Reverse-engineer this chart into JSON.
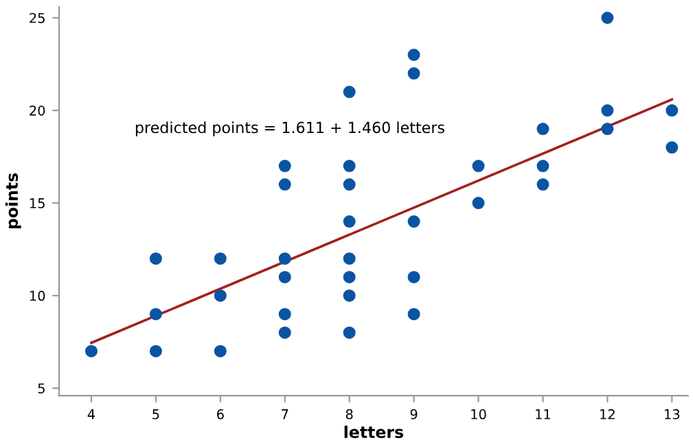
{
  "chart_data": {
    "type": "scatter",
    "xlabel": "letters",
    "ylabel": "points",
    "annotations": [
      "predicted points = 1.611 + 1.460 letters"
    ],
    "xlim": [
      3.5,
      13.25
    ],
    "ylim": [
      4.6,
      25.6
    ],
    "xticks": [
      4,
      5,
      6,
      7,
      8,
      9,
      10,
      11,
      12,
      13
    ],
    "yticks": [
      5,
      10,
      15,
      20,
      25
    ],
    "grid": false,
    "legend": false,
    "series": [
      {
        "marker": "circle",
        "color": "#0a55a3",
        "x": [
          4,
          5,
          5,
          5,
          6,
          6,
          6,
          7,
          7,
          7,
          7,
          7,
          7,
          8,
          8,
          8,
          8,
          8,
          8,
          8,
          8,
          9,
          9,
          9,
          9,
          9,
          10,
          10,
          11,
          11,
          11,
          12,
          12,
          12,
          13,
          13
        ],
        "values": [
          7,
          12,
          9,
          7,
          12,
          10,
          7,
          17,
          16,
          12,
          11,
          9,
          8,
          21,
          17,
          16,
          14,
          12,
          11,
          10,
          8,
          23,
          22,
          14,
          11,
          9,
          17,
          15,
          19,
          17,
          16,
          25,
          20,
          19,
          20,
          18
        ]
      },
      {
        "type": "line",
        "color": "#a3201c",
        "line_style": "solid",
        "marker": "none",
        "x": [
          4,
          13
        ],
        "values": [
          7.45,
          20.59
        ]
      }
    ]
  }
}
